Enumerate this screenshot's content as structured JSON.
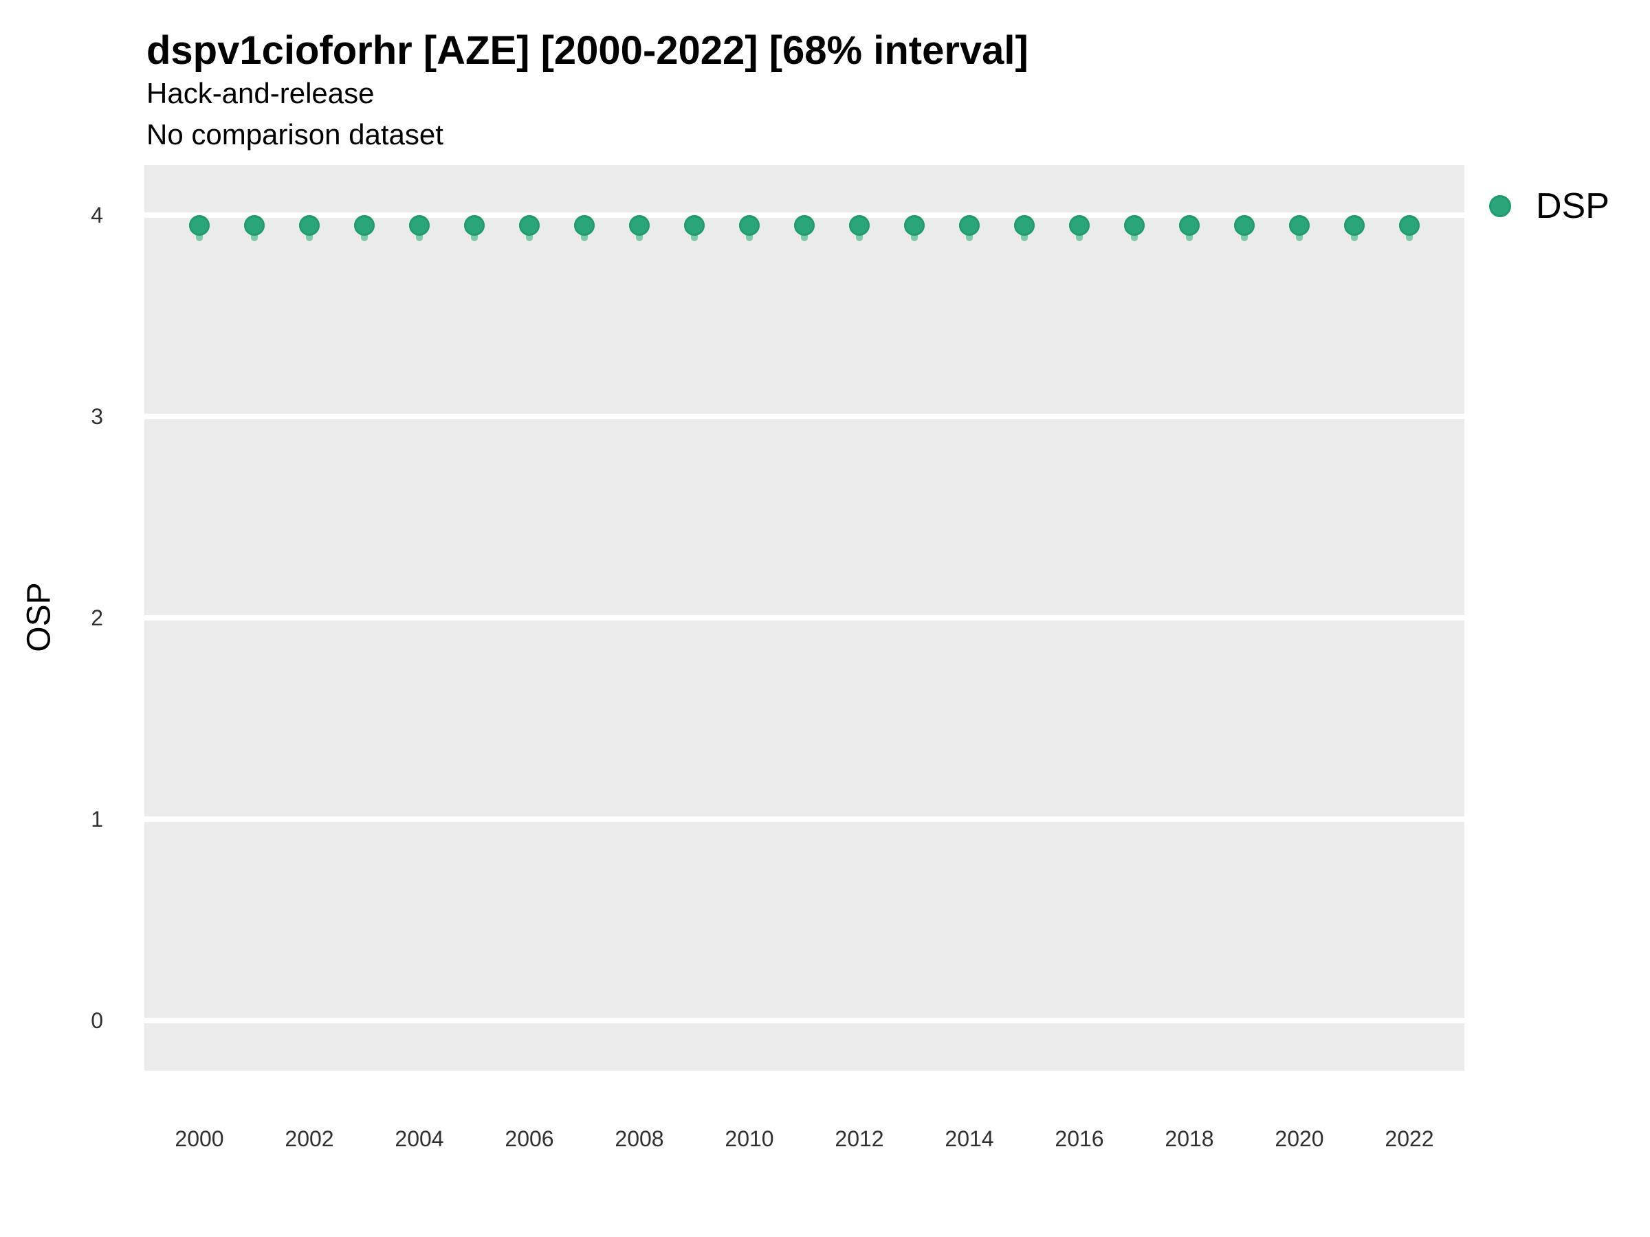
{
  "header": {
    "title": "dspv1cioforhr [AZE] [2000-2022] [68% interval]",
    "subtitle": "Hack-and-release",
    "note": "No comparison dataset"
  },
  "axes": {
    "y_label": "OSP"
  },
  "legend": {
    "position": "right",
    "items": [
      {
        "label": "DSP",
        "color": "#2ba57a"
      }
    ]
  },
  "colors": {
    "panel_bg": "#ebebeb",
    "gridline": "#ffffff",
    "marker_fill": "#2ba57a",
    "marker_edge": "#1d9c6c",
    "interval": "#79ccaa",
    "text": "#000000",
    "tick_text": "#303030"
  },
  "chart_data": {
    "type": "scatter",
    "title": "dspv1cioforhr [AZE] [2000-2022] [68% interval]",
    "subtitle": "Hack-and-release",
    "annotation": "No comparison dataset",
    "xlabel": "",
    "ylabel": "OSP",
    "xlim": [
      1999,
      2023
    ],
    "ylim": [
      -0.25,
      4.25
    ],
    "x_tick_values": [
      2000,
      2002,
      2004,
      2006,
      2008,
      2010,
      2012,
      2014,
      2016,
      2018,
      2020,
      2022
    ],
    "y_tick_values": [
      0,
      1,
      2,
      3,
      4
    ],
    "grid": "major horizontal white lines on gray panel, no minor grid",
    "legend_position": "right",
    "interval_label": "68% interval",
    "series": [
      {
        "name": "DSP",
        "x": [
          2000,
          2001,
          2002,
          2003,
          2004,
          2005,
          2006,
          2007,
          2008,
          2009,
          2010,
          2011,
          2012,
          2013,
          2014,
          2015,
          2016,
          2017,
          2018,
          2019,
          2020,
          2021,
          2022
        ],
        "y": [
          3.95,
          3.95,
          3.95,
          3.95,
          3.95,
          3.95,
          3.95,
          3.95,
          3.95,
          3.95,
          3.95,
          3.95,
          3.95,
          3.95,
          3.95,
          3.95,
          3.95,
          3.95,
          3.95,
          3.95,
          3.95,
          3.95,
          3.95
        ],
        "y_lo": [
          3.87,
          3.87,
          3.87,
          3.87,
          3.87,
          3.87,
          3.87,
          3.87,
          3.87,
          3.87,
          3.87,
          3.87,
          3.87,
          3.87,
          3.87,
          3.87,
          3.87,
          3.87,
          3.87,
          3.87,
          3.87,
          3.87,
          3.87
        ],
        "y_hi": [
          3.99,
          3.99,
          3.99,
          3.99,
          3.99,
          3.99,
          3.99,
          3.99,
          3.99,
          3.99,
          3.99,
          3.99,
          3.99,
          3.99,
          3.99,
          3.99,
          3.99,
          3.99,
          3.99,
          3.99,
          3.99,
          3.99,
          3.99
        ]
      }
    ]
  }
}
